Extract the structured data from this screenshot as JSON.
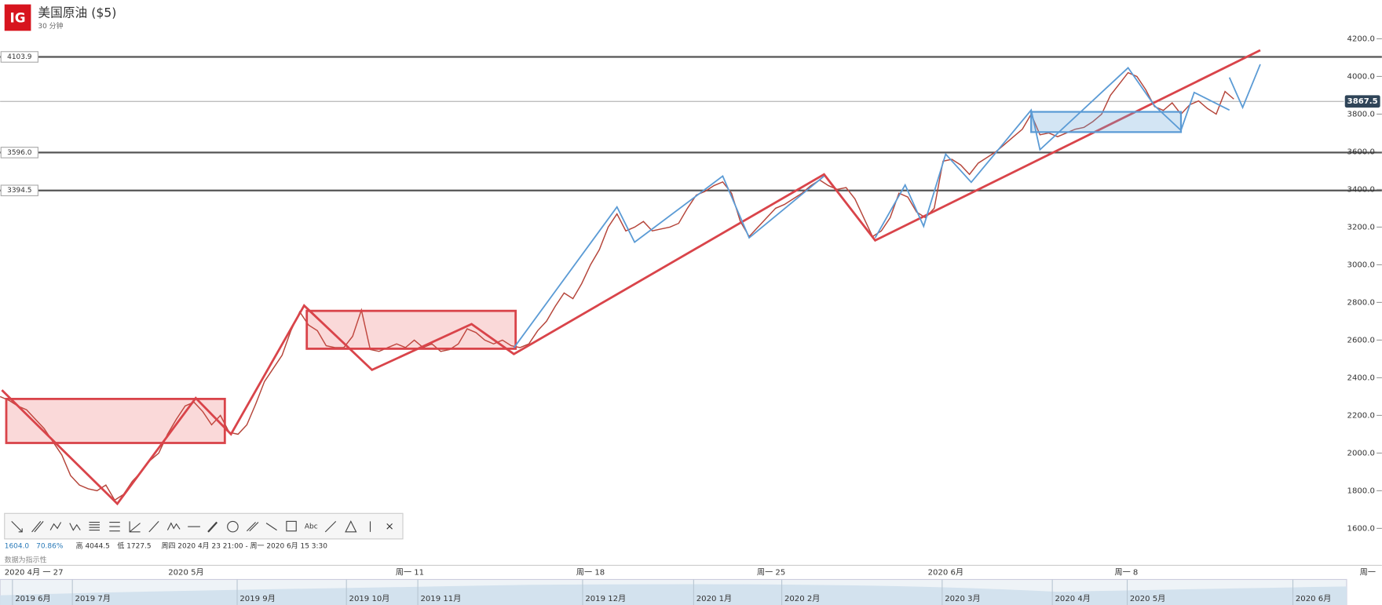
{
  "header": {
    "logo": "IG",
    "title": "美国原油 ($5)",
    "subtitle": "30 分钟"
  },
  "chart_data": {
    "type": "line",
    "color": "#b5453a",
    "grid": true,
    "x": [
      0,
      1,
      2,
      3,
      4,
      5,
      6,
      7,
      8,
      9,
      10,
      11,
      12,
      13,
      14,
      15,
      16,
      17,
      18,
      19,
      20,
      21,
      22,
      23,
      24,
      25,
      26,
      27,
      28,
      29,
      30,
      31,
      32,
      33,
      34,
      35,
      36,
      37,
      38,
      39,
      40,
      41,
      42,
      43,
      44,
      45,
      46,
      47,
      48,
      49,
      50,
      51,
      52,
      53,
      54,
      55,
      56,
      57,
      58,
      59,
      60,
      61,
      62,
      63,
      64,
      65,
      66,
      67,
      68,
      69,
      70,
      71,
      72,
      73,
      74,
      75,
      76,
      77,
      78,
      79,
      80,
      81,
      82,
      83,
      84,
      85,
      86,
      87,
      88,
      89,
      90,
      91,
      92,
      93,
      94,
      95,
      96,
      97,
      98,
      99,
      100,
      101,
      102,
      103,
      104,
      105,
      106,
      107,
      108,
      109,
      110,
      111,
      112,
      113,
      114,
      115,
      116,
      117,
      118,
      119,
      120,
      121,
      122,
      123,
      124,
      125,
      126,
      127,
      128,
      129,
      130,
      131,
      132,
      133,
      134,
      135,
      136,
      137,
      138,
      139,
      140
    ],
    "values": [
      2300,
      2280,
      2250,
      2230,
      2180,
      2130,
      2060,
      1990,
      1880,
      1830,
      1810,
      1800,
      1830,
      1750,
      1780,
      1850,
      1900,
      1960,
      2000,
      2100,
      2180,
      2250,
      2270,
      2220,
      2150,
      2200,
      2110,
      2100,
      2150,
      2260,
      2380,
      2450,
      2520,
      2650,
      2750,
      2680,
      2650,
      2570,
      2560,
      2560,
      2620,
      2760,
      2550,
      2540,
      2560,
      2580,
      2560,
      2600,
      2560,
      2580,
      2540,
      2550,
      2580,
      2660,
      2640,
      2600,
      2580,
      2600,
      2570,
      2560,
      2580,
      2650,
      2700,
      2780,
      2850,
      2820,
      2900,
      3000,
      3080,
      3200,
      3270,
      3180,
      3200,
      3230,
      3180,
      3190,
      3200,
      3220,
      3300,
      3370,
      3390,
      3420,
      3440,
      3380,
      3230,
      3150,
      3200,
      3250,
      3300,
      3320,
      3350,
      3380,
      3420,
      3450,
      3420,
      3400,
      3410,
      3350,
      3250,
      3150,
      3180,
      3250,
      3380,
      3360,
      3280,
      3250,
      3300,
      3550,
      3560,
      3530,
      3480,
      3540,
      3570,
      3600,
      3640,
      3680,
      3720,
      3800,
      3690,
      3700,
      3680,
      3700,
      3720,
      3730,
      3760,
      3800,
      3900,
      3960,
      4020,
      4000,
      3930,
      3840,
      3820,
      3860,
      3800,
      3850,
      3870,
      3830,
      3800,
      3920,
      3880
    ],
    "xlim": [
      0,
      156.8
    ],
    "xticks": [
      {
        "value": 0,
        "label": "2020 4月 一 27"
      },
      {
        "value": 21.1,
        "label": "2020 5月"
      },
      {
        "value": 46.5,
        "label": "周一 11"
      },
      {
        "value": 67,
        "label": "周一 18"
      },
      {
        "value": 87.5,
        "label": "周一 25"
      },
      {
        "value": 107.3,
        "label": "2020 6月"
      },
      {
        "value": 127.8,
        "label": "周一 8"
      },
      {
        "value": 155.2,
        "label": "周一"
      }
    ],
    "ylim": [
      1413,
      4406
    ],
    "yticks": [
      {
        "value": 1600,
        "label": "1600.0"
      },
      {
        "value": 1800,
        "label": "1800.0"
      },
      {
        "value": 2000,
        "label": "2000.0"
      },
      {
        "value": 2200,
        "label": "2200.0"
      },
      {
        "value": 2400,
        "label": "2400.0"
      },
      {
        "value": 2600,
        "label": "2600.0"
      },
      {
        "value": 2800,
        "label": "2800.0"
      },
      {
        "value": 3000,
        "label": "3000.0"
      },
      {
        "value": 3200,
        "label": "3200.0"
      },
      {
        "value": 3400,
        "label": "3400.0"
      },
      {
        "value": 3600,
        "label": "3600.0"
      },
      {
        "value": 3800,
        "label": "3800.0"
      },
      {
        "value": 4000,
        "label": "4000.0"
      },
      {
        "value": 4200,
        "label": "4200.0"
      }
    ],
    "levels": [
      4103.9,
      {
        "value": 3596,
        "label": "3596.0"
      },
      3394.5
    ],
    "last_price": 3867.5
  },
  "toolbar": {
    "text_tool": "Abc",
    "close": "×"
  },
  "info": [
    "1604.0",
    "70.86%",
    "高 4044.5",
    "低 1727.5",
    "周四 2020 4月 23 21:00 - 周一 2020 6月 15 3:30"
  ],
  "note": "数据为指示性",
  "navigator": [
    "2019 6月",
    "2019 7月",
    "2019 9月",
    "2019 10月",
    "2019 11月",
    "2019 12月",
    "2020 1月",
    "2020 2月",
    "2020 3月",
    "2020 4月",
    "2020 5月",
    "2020 6月"
  ]
}
